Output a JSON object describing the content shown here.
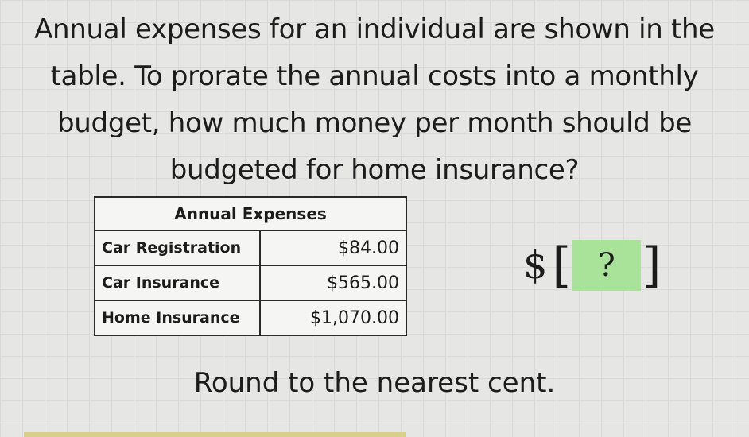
{
  "question": "Annual expenses for an individual are shown in the table. To prorate the annual costs into a monthly budget, how much money per month should be budgeted for home insurance?",
  "table": {
    "title": "Annual Expenses",
    "rows": [
      {
        "label": "Car Registration",
        "value": "$84.00"
      },
      {
        "label": "Car Insurance",
        "value": "$565.00"
      },
      {
        "label": "Home Insurance",
        "value": "$1,070.00"
      }
    ]
  },
  "answer": {
    "currency": "$",
    "placeholder": "?",
    "box_color": "#a9e39a"
  },
  "hint": "Round to the nearest cent."
}
